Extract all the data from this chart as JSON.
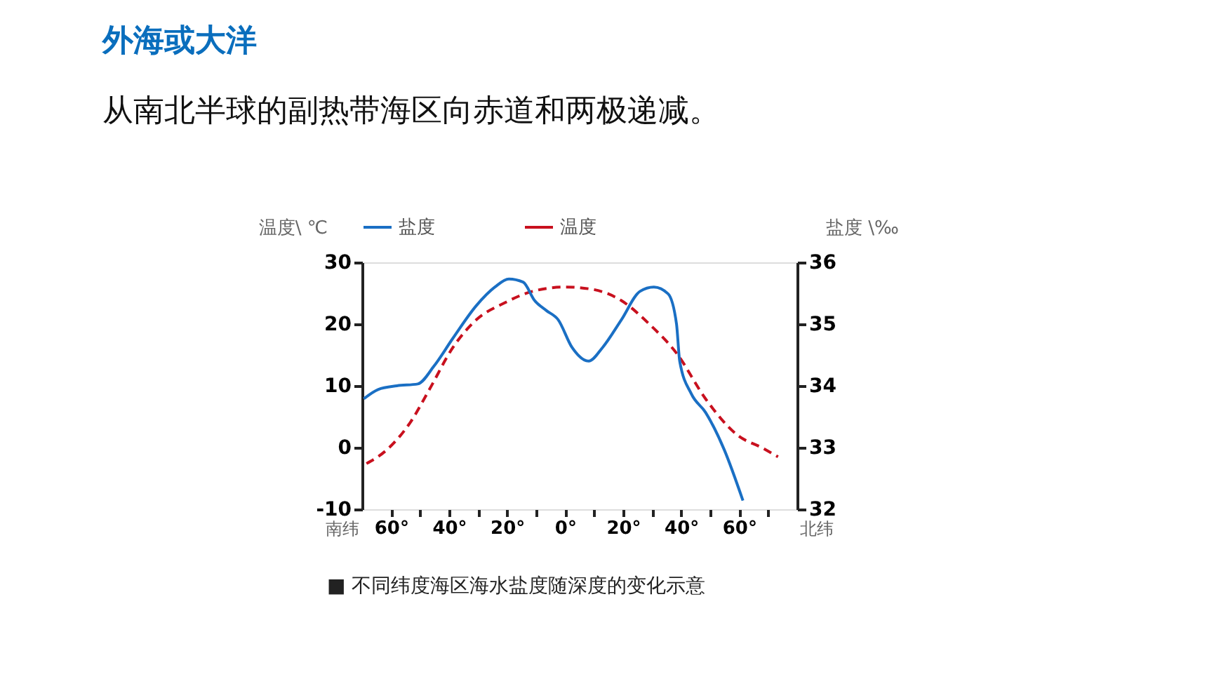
{
  "chart_data": {
    "type": "line",
    "title": "外海或大洋",
    "subtitle": "从南北半球的副热带海区向赤道和两极递减。",
    "ylabel": "温度\\ ℃",
    "y2label": "盐度 \\‰",
    "xlim": [
      -70,
      80
    ],
    "xticks": [
      {
        "value": -60,
        "label": "60°"
      },
      {
        "value": -50,
        "label": null
      },
      {
        "value": -40,
        "label": "40°"
      },
      {
        "value": -30,
        "label": null
      },
      {
        "value": -20,
        "label": "20°"
      },
      {
        "value": -10,
        "label": null
      },
      {
        "value": 0,
        "label": "0°"
      },
      {
        "value": 10,
        "label": null
      },
      {
        "value": 20,
        "label": "20°"
      },
      {
        "value": 30,
        "label": null
      },
      {
        "value": 40,
        "label": "40°"
      },
      {
        "value": 50,
        "label": null
      },
      {
        "value": 60,
        "label": "60°"
      },
      {
        "value": 70,
        "label": null
      }
    ],
    "ylim": [
      -10,
      30
    ],
    "yticks": [
      -10,
      0,
      10,
      20,
      30
    ],
    "y2lim": [
      32,
      36
    ],
    "y2ticks": [
      32,
      33,
      34,
      35,
      36
    ],
    "legend": "top",
    "grid": false,
    "annotations": [
      "南纬",
      "北纬",
      "■ 不同纬度海区海水盐度随深度的变化示意"
    ],
    "series": [
      {
        "name": "盐度",
        "color": "#1a6fc4",
        "axis": "y2",
        "line_style": "solid",
        "x": [
          -69.4,
          -64.5,
          -58,
          -50.8,
          -45.2,
          -38.7,
          -30.6,
          -24.2,
          -19.4,
          -14.5,
          -10.5,
          -6.5,
          -2.4,
          2.4,
          8.1,
          12.9,
          19.4,
          25.8,
          30.6,
          35.5,
          38.4,
          39.5,
          43.5,
          48.4,
          54.8,
          61.3
        ],
        "values": [
          33.79,
          33.94,
          34.0,
          34.03,
          34.32,
          34.77,
          35.3,
          35.6,
          35.73,
          35.68,
          35.38,
          35.22,
          35.07,
          34.62,
          34.4,
          34.62,
          35.07,
          35.53,
          35.6,
          35.49,
          35.0,
          34.4,
          33.87,
          33.57,
          32.97,
          32.14
        ]
      },
      {
        "name": "温度",
        "color": "#c8101e",
        "line_style": "dashed",
        "x": [
          -68.5,
          -61.3,
          -53.2,
          -46.8,
          -38.7,
          -30.6,
          -21,
          -11.3,
          0,
          9.7,
          19.4,
          29,
          38.7,
          48.4,
          59.7,
          67.7,
          73.4
        ],
        "values": [
          -2.6,
          -0.3,
          4.2,
          9.4,
          16.2,
          20.7,
          23.4,
          25.3,
          26.0,
          25.6,
          23.8,
          20.0,
          15.1,
          7.9,
          1.9,
          0.0,
          -1.5
        ]
      }
    ]
  }
}
